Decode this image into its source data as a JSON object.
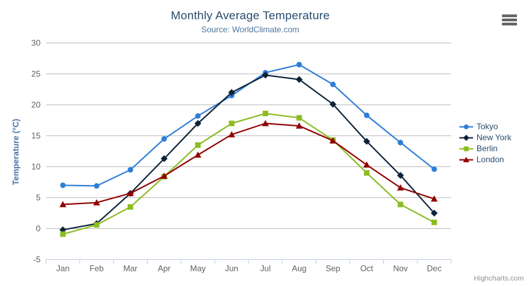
{
  "header": {
    "title": "Monthly Average Temperature",
    "subtitle": "Source: WorldClimate.com"
  },
  "chart_data": {
    "type": "line",
    "title": "Monthly Average Temperature",
    "subtitle": "Source: WorldClimate.com",
    "categories": [
      "Jan",
      "Feb",
      "Mar",
      "Apr",
      "May",
      "Jun",
      "Jul",
      "Aug",
      "Sep",
      "Oct",
      "Nov",
      "Dec"
    ],
    "series": [
      {
        "name": "Tokyo",
        "color": "#2f7ed8",
        "marker": "circle",
        "values": [
          7.0,
          6.9,
          9.5,
          14.5,
          18.2,
          21.5,
          25.2,
          26.5,
          23.3,
          18.3,
          13.9,
          9.6
        ]
      },
      {
        "name": "New York",
        "color": "#0d233a",
        "marker": "diamond",
        "values": [
          -0.2,
          0.8,
          5.7,
          11.3,
          17.0,
          22.0,
          24.8,
          24.1,
          20.1,
          14.1,
          8.6,
          2.5
        ]
      },
      {
        "name": "Berlin",
        "color": "#8bbc21",
        "marker": "square",
        "values": [
          -0.9,
          0.6,
          3.5,
          8.4,
          13.5,
          17.0,
          18.6,
          17.9,
          14.3,
          9.0,
          3.9,
          1.0
        ]
      },
      {
        "name": "London",
        "color": "#910000",
        "marker": "triangle",
        "values": [
          3.9,
          4.2,
          5.7,
          8.5,
          11.9,
          15.2,
          17.0,
          16.6,
          14.2,
          10.3,
          6.6,
          4.8
        ]
      }
    ],
    "xlabel": "",
    "ylabel": "Temperature (°C)",
    "ylim": [
      -5,
      30
    ],
    "ytick_step": 5,
    "grid": true,
    "legend_position": "right"
  },
  "credits": {
    "label": "Highcharts.com"
  },
  "icons": {
    "context_menu": "hamburger-icon"
  },
  "colors": {
    "title": "#274b6d",
    "subtitle": "#4d759e",
    "axis_label": "#606060",
    "gridline": "#c0c0c0",
    "axis_line": "#c0d0e0",
    "y_axis_title": "#4573a7",
    "legend_text": "#274b6d",
    "credits_text": "#909090",
    "context_icon": "#666666"
  }
}
